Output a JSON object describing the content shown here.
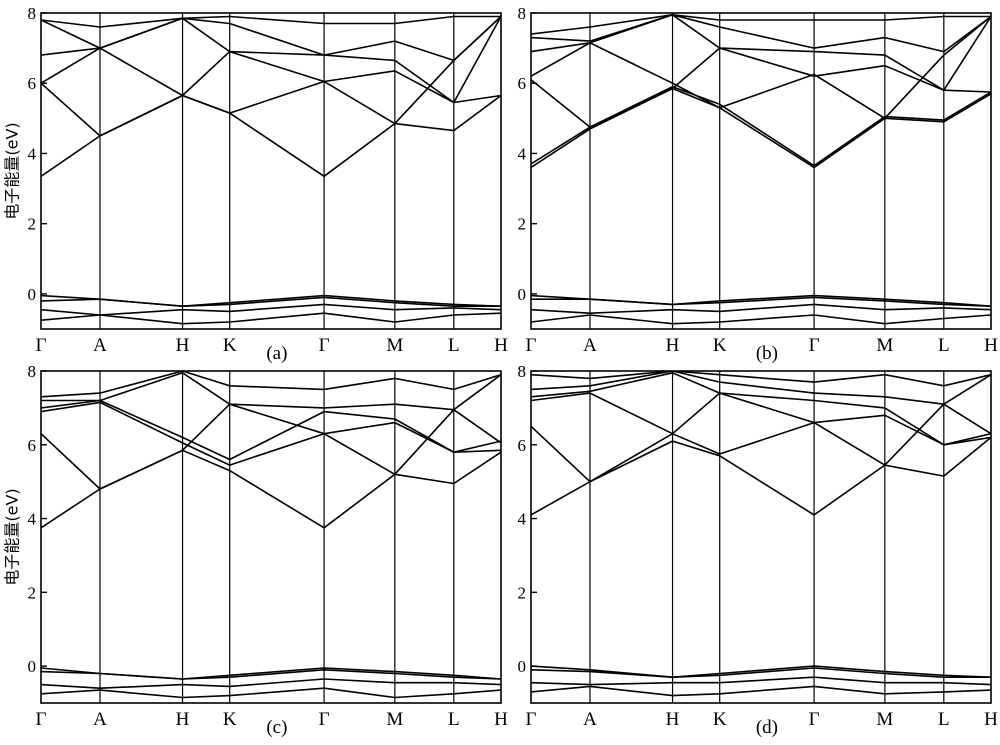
{
  "chart_data": [
    {
      "type": "line",
      "panel_label": "(a)",
      "ylabel": "电子能量(eV)",
      "ylim": [
        -1,
        8
      ],
      "yticks": [
        0,
        2,
        4,
        6,
        8
      ],
      "kpoints": [
        "Γ",
        "A",
        "H",
        "K",
        "Γ",
        "M",
        "L",
        "H"
      ],
      "kpositions": [
        0,
        0.5,
        1.2,
        1.6,
        2.4,
        3.0,
        3.5,
        3.9
      ],
      "series": [
        {
          "x": [
            0,
            0.5,
            1.2,
            1.6,
            2.4,
            3.0,
            3.5,
            3.9
          ],
          "y": [
            3.35,
            4.5,
            5.65,
            5.15,
            3.35,
            4.85,
            4.65,
            5.65
          ]
        },
        {
          "x": [
            0,
            0.5,
            1.2,
            1.6,
            2.4,
            3.0,
            3.5,
            3.9
          ],
          "y": [
            6.0,
            4.5,
            5.65,
            6.9,
            6.05,
            6.35,
            5.45,
            5.65
          ]
        },
        {
          "x": [
            0,
            0.5,
            1.2,
            1.6,
            2.4,
            3.0,
            3.5,
            3.9
          ],
          "y": [
            6.0,
            7.0,
            5.65,
            5.15,
            6.05,
            4.85,
            6.65,
            7.9
          ]
        },
        {
          "x": [
            0,
            0.5,
            1.2,
            1.6,
            2.4,
            3.0,
            3.5,
            3.9
          ],
          "y": [
            6.8,
            7.0,
            7.85,
            6.9,
            6.8,
            6.65,
            5.45,
            7.9
          ]
        },
        {
          "x": [
            0,
            0.5,
            1.2,
            1.6,
            2.4,
            3.0,
            3.5,
            3.9
          ],
          "y": [
            7.8,
            7.0,
            7.85,
            7.7,
            6.8,
            7.2,
            6.65,
            7.9
          ]
        },
        {
          "x": [
            0,
            0.5,
            1.2,
            1.6,
            2.4,
            3.0,
            3.5,
            3.9
          ],
          "y": [
            7.8,
            7.6,
            7.85,
            7.9,
            7.7,
            7.7,
            7.9,
            7.9
          ]
        },
        {
          "x": [
            0,
            0.5,
            1.2,
            1.6,
            2.4,
            3.0,
            3.5,
            3.9
          ],
          "y": [
            -0.05,
            -0.15,
            -0.35,
            -0.25,
            -0.05,
            -0.2,
            -0.3,
            -0.35
          ]
        },
        {
          "x": [
            0,
            0.5,
            1.2,
            1.6,
            2.4,
            3.0,
            3.5,
            3.9
          ],
          "y": [
            -0.2,
            -0.15,
            -0.35,
            -0.3,
            -0.1,
            -0.25,
            -0.35,
            -0.35
          ]
        },
        {
          "x": [
            0,
            0.5,
            1.2,
            1.6,
            2.4,
            3.0,
            3.5,
            3.9
          ],
          "y": [
            -0.45,
            -0.6,
            -0.45,
            -0.5,
            -0.3,
            -0.45,
            -0.4,
            -0.45
          ]
        },
        {
          "x": [
            0,
            0.5,
            1.2,
            1.6,
            2.4,
            3.0,
            3.5,
            3.9
          ],
          "y": [
            -0.75,
            -0.6,
            -0.85,
            -0.8,
            -0.55,
            -0.8,
            -0.6,
            -0.55
          ]
        }
      ]
    },
    {
      "type": "line",
      "panel_label": "(b)",
      "ylabel": "",
      "ylim": [
        -1,
        8
      ],
      "yticks": [
        0,
        2,
        4,
        6,
        8
      ],
      "kpoints": [
        "Γ",
        "A",
        "H",
        "K",
        "Γ",
        "M",
        "L",
        "H"
      ],
      "kpositions": [
        0,
        0.5,
        1.2,
        1.6,
        2.4,
        3.0,
        3.5,
        3.9
      ],
      "series": [
        {
          "x": [
            0,
            0.5,
            1.2,
            1.6,
            2.4,
            3.0,
            3.5,
            3.9
          ],
          "y": [
            3.6,
            4.7,
            5.85,
            5.3,
            3.6,
            5.0,
            4.9,
            5.7
          ]
        },
        {
          "x": [
            0,
            0.5,
            1.2,
            1.6,
            2.4,
            3.0,
            3.5,
            3.9
          ],
          "y": [
            3.7,
            4.75,
            5.9,
            5.4,
            3.65,
            5.05,
            4.95,
            5.75
          ]
        },
        {
          "x": [
            0,
            0.5,
            1.2,
            1.6,
            2.4,
            3.0,
            3.5,
            3.9
          ],
          "y": [
            6.1,
            4.75,
            5.85,
            7.0,
            6.2,
            6.5,
            5.8,
            5.75
          ]
        },
        {
          "x": [
            0,
            0.5,
            1.2,
            1.6,
            2.4,
            3.0,
            3.5,
            3.9
          ],
          "y": [
            6.2,
            7.15,
            6.0,
            5.3,
            6.25,
            5.0,
            6.8,
            7.9
          ]
        },
        {
          "x": [
            0,
            0.5,
            1.2,
            1.6,
            2.4,
            3.0,
            3.5,
            3.9
          ],
          "y": [
            6.9,
            7.15,
            7.95,
            7.0,
            6.9,
            6.8,
            5.8,
            7.9
          ]
        },
        {
          "x": [
            0,
            0.5,
            1.2,
            1.6,
            2.4,
            3.0,
            3.5,
            3.9
          ],
          "y": [
            7.3,
            7.2,
            7.95,
            7.6,
            7.0,
            7.3,
            6.9,
            7.9
          ]
        },
        {
          "x": [
            0,
            0.5,
            1.2,
            1.6,
            2.4,
            3.0,
            3.5,
            3.9
          ],
          "y": [
            7.4,
            7.6,
            7.95,
            7.8,
            7.8,
            7.8,
            7.9,
            7.9
          ]
        },
        {
          "x": [
            0,
            0.5,
            1.2,
            1.6,
            2.4,
            3.0,
            3.5,
            3.9
          ],
          "y": [
            -0.05,
            -0.15,
            -0.3,
            -0.2,
            -0.05,
            -0.15,
            -0.25,
            -0.35
          ]
        },
        {
          "x": [
            0,
            0.5,
            1.2,
            1.6,
            2.4,
            3.0,
            3.5,
            3.9
          ],
          "y": [
            -0.15,
            -0.15,
            -0.3,
            -0.25,
            -0.1,
            -0.2,
            -0.3,
            -0.35
          ]
        },
        {
          "x": [
            0,
            0.5,
            1.2,
            1.6,
            2.4,
            3.0,
            3.5,
            3.9
          ],
          "y": [
            -0.45,
            -0.55,
            -0.45,
            -0.5,
            -0.3,
            -0.45,
            -0.4,
            -0.45
          ]
        },
        {
          "x": [
            0,
            0.5,
            1.2,
            1.6,
            2.4,
            3.0,
            3.5,
            3.9
          ],
          "y": [
            -0.8,
            -0.6,
            -0.85,
            -0.8,
            -0.6,
            -0.85,
            -0.7,
            -0.6
          ]
        }
      ]
    },
    {
      "type": "line",
      "panel_label": "(c)",
      "ylabel": "电子能量(eV)",
      "ylim": [
        -1,
        8
      ],
      "yticks": [
        0,
        2,
        4,
        6,
        8
      ],
      "kpoints": [
        "Γ",
        "A",
        "H",
        "K",
        "Γ",
        "M",
        "L",
        "H"
      ],
      "kpositions": [
        0,
        0.5,
        1.2,
        1.6,
        2.4,
        3.0,
        3.5,
        3.9
      ],
      "series": [
        {
          "x": [
            0,
            0.5,
            1.2,
            1.6,
            2.4,
            3.0,
            3.5,
            3.9
          ],
          "y": [
            3.75,
            4.8,
            5.85,
            5.3,
            3.75,
            5.2,
            4.95,
            5.8
          ]
        },
        {
          "x": [
            0,
            0.5,
            1.2,
            1.6,
            2.4,
            3.0,
            3.5,
            3.9
          ],
          "y": [
            6.3,
            4.8,
            5.85,
            7.1,
            6.3,
            6.6,
            5.8,
            5.85
          ]
        },
        {
          "x": [
            0,
            0.5,
            1.2,
            1.6,
            2.4,
            3.0,
            3.5,
            3.9
          ],
          "y": [
            6.9,
            7.15,
            6.05,
            5.45,
            6.3,
            5.2,
            6.95,
            6.05
          ]
        },
        {
          "x": [
            0,
            0.5,
            1.2,
            1.6,
            2.4,
            3.0,
            3.5,
            3.9
          ],
          "y": [
            7.0,
            7.2,
            6.2,
            5.6,
            6.9,
            6.7,
            5.8,
            6.1
          ]
        },
        {
          "x": [
            0,
            0.5,
            1.2,
            1.6,
            2.4,
            3.0,
            3.5,
            3.9
          ],
          "y": [
            7.2,
            7.2,
            7.95,
            7.1,
            7.0,
            7.1,
            6.95,
            7.9
          ]
        },
        {
          "x": [
            0,
            0.5,
            1.2,
            1.6,
            2.4,
            3.0,
            3.5,
            3.9
          ],
          "y": [
            7.3,
            7.4,
            8.0,
            7.6,
            7.5,
            7.8,
            7.5,
            7.9
          ]
        },
        {
          "x": [
            0,
            0.5,
            1.2,
            1.6,
            2.4,
            3.0,
            3.5,
            3.9
          ],
          "y": [
            -0.05,
            -0.2,
            -0.35,
            -0.25,
            -0.05,
            -0.15,
            -0.25,
            -0.35
          ]
        },
        {
          "x": [
            0,
            0.5,
            1.2,
            1.6,
            2.4,
            3.0,
            3.5,
            3.9
          ],
          "y": [
            -0.15,
            -0.2,
            -0.35,
            -0.3,
            -0.1,
            -0.2,
            -0.3,
            -0.35
          ]
        },
        {
          "x": [
            0,
            0.5,
            1.2,
            1.6,
            2.4,
            3.0,
            3.5,
            3.9
          ],
          "y": [
            -0.5,
            -0.6,
            -0.5,
            -0.55,
            -0.35,
            -0.45,
            -0.45,
            -0.5
          ]
        },
        {
          "x": [
            0,
            0.5,
            1.2,
            1.6,
            2.4,
            3.0,
            3.5,
            3.9
          ],
          "y": [
            -0.75,
            -0.65,
            -0.85,
            -0.8,
            -0.6,
            -0.85,
            -0.75,
            -0.65
          ]
        }
      ]
    },
    {
      "type": "line",
      "panel_label": "(d)",
      "ylabel": "",
      "ylim": [
        -1,
        8
      ],
      "yticks": [
        0,
        2,
        4,
        6,
        8
      ],
      "kpoints": [
        "Γ",
        "A",
        "H",
        "K",
        "Γ",
        "M",
        "L",
        "H"
      ],
      "kpositions": [
        0,
        0.5,
        1.2,
        1.6,
        2.4,
        3.0,
        3.5,
        3.9
      ],
      "series": [
        {
          "x": [
            0,
            0.5,
            1.2,
            1.6,
            2.4,
            3.0,
            3.5,
            3.9
          ],
          "y": [
            4.1,
            5.0,
            6.1,
            5.7,
            4.1,
            5.45,
            5.15,
            6.2
          ]
        },
        {
          "x": [
            0,
            0.5,
            1.2,
            1.6,
            2.4,
            3.0,
            3.5,
            3.9
          ],
          "y": [
            6.5,
            5.0,
            6.3,
            7.4,
            6.6,
            6.8,
            6.0,
            6.2
          ]
        },
        {
          "x": [
            0,
            0.5,
            1.2,
            1.6,
            2.4,
            3.0,
            3.5,
            3.9
          ],
          "y": [
            7.2,
            7.4,
            6.3,
            5.75,
            6.6,
            5.45,
            7.1,
            6.3
          ]
        },
        {
          "x": [
            0,
            0.5,
            1.2,
            1.6,
            2.4,
            3.0,
            3.5,
            3.9
          ],
          "y": [
            7.3,
            7.45,
            7.95,
            7.4,
            7.2,
            7.0,
            6.0,
            6.3
          ]
        },
        {
          "x": [
            0,
            0.5,
            1.2,
            1.6,
            2.4,
            3.0,
            3.5,
            3.9
          ],
          "y": [
            7.5,
            7.6,
            8.0,
            7.7,
            7.4,
            7.3,
            7.1,
            7.9
          ]
        },
        {
          "x": [
            0,
            0.5,
            1.2,
            1.6,
            2.4,
            3.0,
            3.5,
            3.9
          ],
          "y": [
            7.9,
            7.8,
            8.0,
            7.9,
            7.7,
            7.9,
            7.6,
            7.9
          ]
        },
        {
          "x": [
            0,
            0.5,
            1.2,
            1.6,
            2.4,
            3.0,
            3.5,
            3.9
          ],
          "y": [
            0.0,
            -0.1,
            -0.3,
            -0.2,
            0.0,
            -0.15,
            -0.25,
            -0.3
          ]
        },
        {
          "x": [
            0,
            0.5,
            1.2,
            1.6,
            2.4,
            3.0,
            3.5,
            3.9
          ],
          "y": [
            -0.1,
            -0.15,
            -0.3,
            -0.25,
            -0.05,
            -0.2,
            -0.3,
            -0.3
          ]
        },
        {
          "x": [
            0,
            0.5,
            1.2,
            1.6,
            2.4,
            3.0,
            3.5,
            3.9
          ],
          "y": [
            -0.45,
            -0.5,
            -0.45,
            -0.45,
            -0.3,
            -0.45,
            -0.45,
            -0.5
          ]
        },
        {
          "x": [
            0,
            0.5,
            1.2,
            1.6,
            2.4,
            3.0,
            3.5,
            3.9
          ],
          "y": [
            -0.7,
            -0.55,
            -0.8,
            -0.75,
            -0.55,
            -0.75,
            -0.7,
            -0.65
          ]
        }
      ]
    }
  ]
}
